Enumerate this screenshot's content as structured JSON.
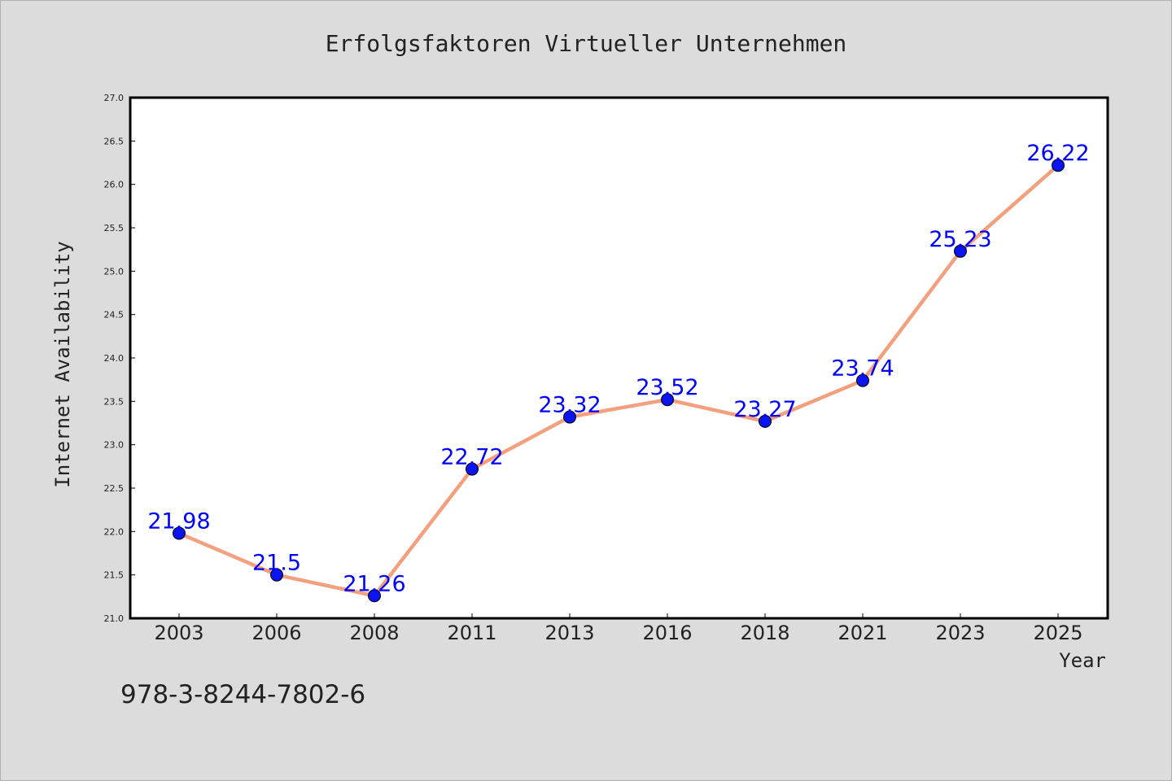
{
  "chart_data": {
    "type": "line",
    "title": "Erfolgsfaktoren Virtueller Unternehmen",
    "xlabel": "Year",
    "ylabel": "Internet Availability",
    "categories": [
      "2003",
      "2006",
      "2008",
      "2011",
      "2013",
      "2016",
      "2018",
      "2021",
      "2023",
      "2025"
    ],
    "series": [
      {
        "values": [
          21.98,
          21.5,
          21.26,
          22.72,
          23.32,
          23.52,
          23.27,
          23.74,
          25.23,
          26.22
        ],
        "labels": [
          "21.98",
          "21.5",
          "21.26",
          "22.72",
          "23.32",
          "23.52",
          "23.27",
          "23.74",
          "25.23",
          "26.22"
        ],
        "line_color": "#f4a07e",
        "marker_color": "#0a14ee"
      }
    ],
    "ylim": [
      21.0,
      27.0
    ],
    "yticks": [
      "21.0",
      "21.5",
      "22.0",
      "22.5",
      "23.0",
      "23.5",
      "24.0",
      "24.5",
      "25.0",
      "25.5",
      "26.0",
      "26.5",
      "27.0"
    ],
    "grid": false,
    "legend": "none"
  },
  "footer_text": "978-3-8244-7802-6",
  "colors": {
    "background": "#dcdcdc",
    "plot_background": "#ffffff",
    "label_color": "#0000ff"
  }
}
